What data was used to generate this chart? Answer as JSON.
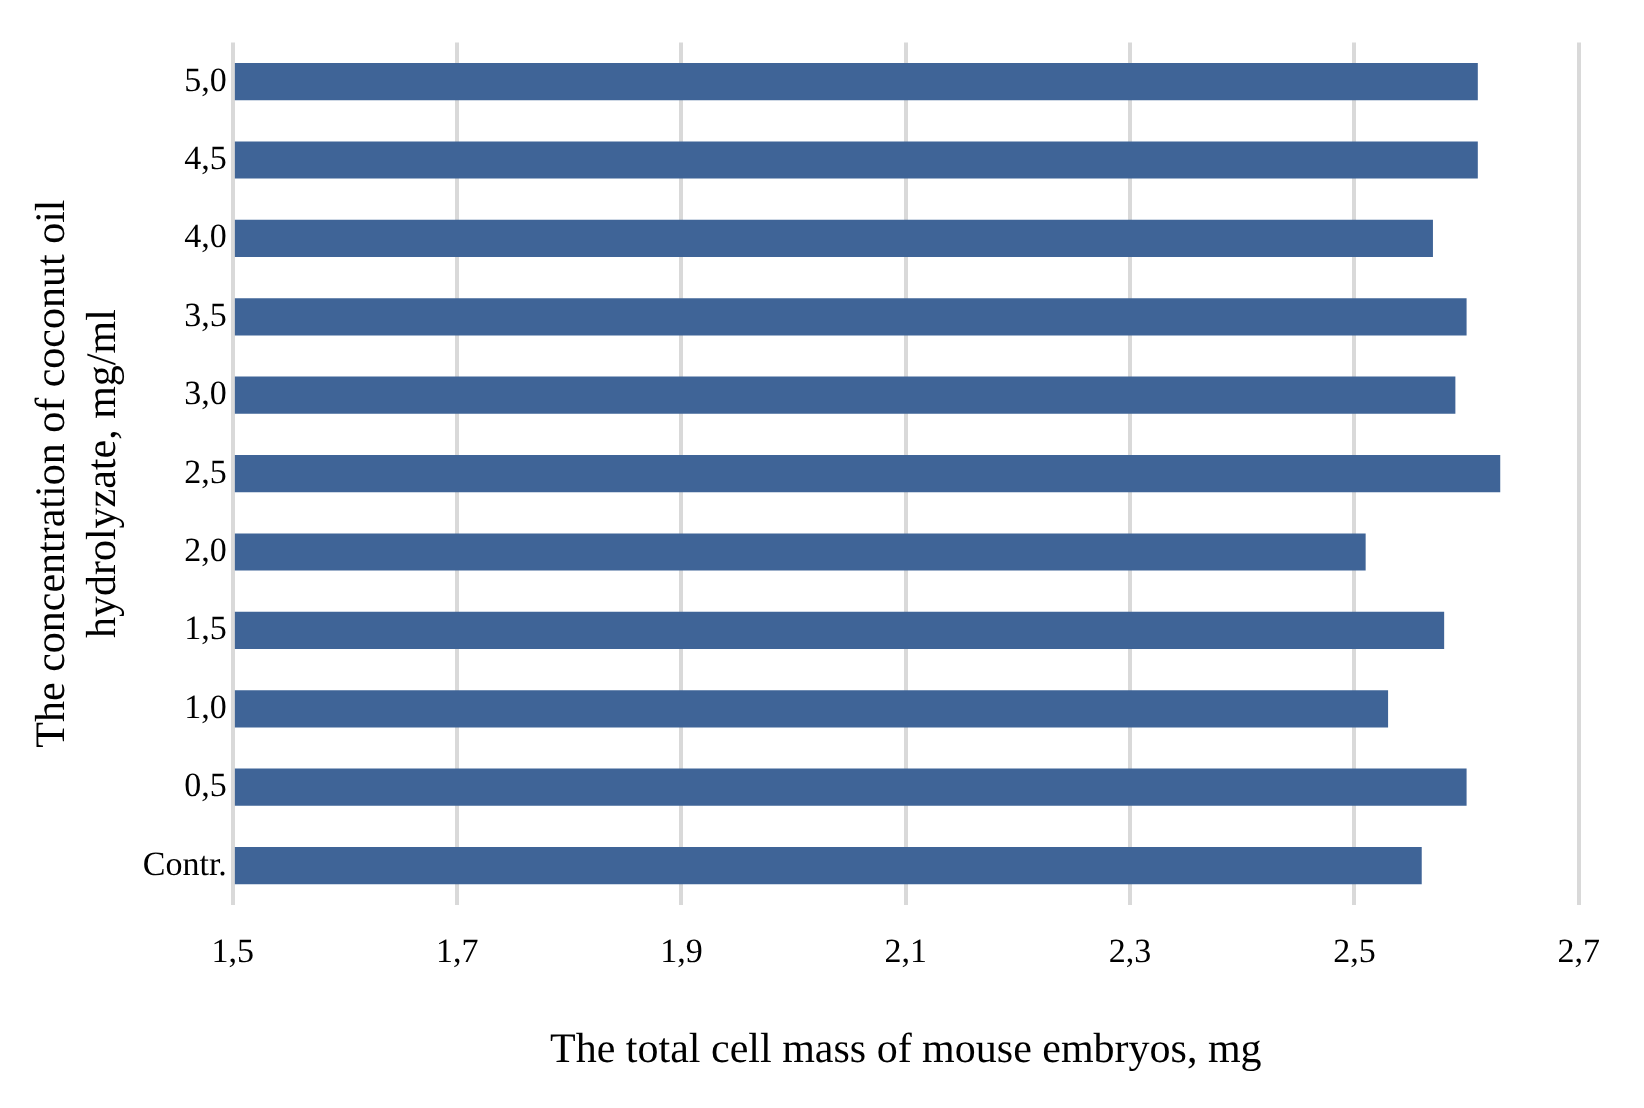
{
  "chart_data": {
    "type": "bar",
    "orientation": "horizontal",
    "xlabel": "The total cell mass of mouse embryos, mg",
    "ylabel": "The concentration of coconut oil hydrolyzate, mg/ml",
    "categories": [
      "5,0",
      "4,5",
      "4,0",
      "3,5",
      "3,0",
      "2,5",
      "2,0",
      "1,5",
      "1,0",
      "0,5",
      "Contr."
    ],
    "values": [
      2.61,
      2.61,
      2.57,
      2.6,
      2.59,
      2.63,
      2.51,
      2.58,
      2.53,
      2.6,
      2.56
    ],
    "color": "#3f6497",
    "xlim": [
      1.5,
      2.7
    ],
    "xticks": [
      {
        "value": 1.5,
        "label": "1,5"
      },
      {
        "value": 1.7,
        "label": "1,7"
      },
      {
        "value": 1.9,
        "label": "1,9"
      },
      {
        "value": 2.1,
        "label": "2,1"
      },
      {
        "value": 2.3,
        "label": "2,3"
      },
      {
        "value": 2.5,
        "label": "2,5"
      },
      {
        "value": 2.7,
        "label": "2,7"
      }
    ],
    "grid": "x",
    "legend": false
  }
}
